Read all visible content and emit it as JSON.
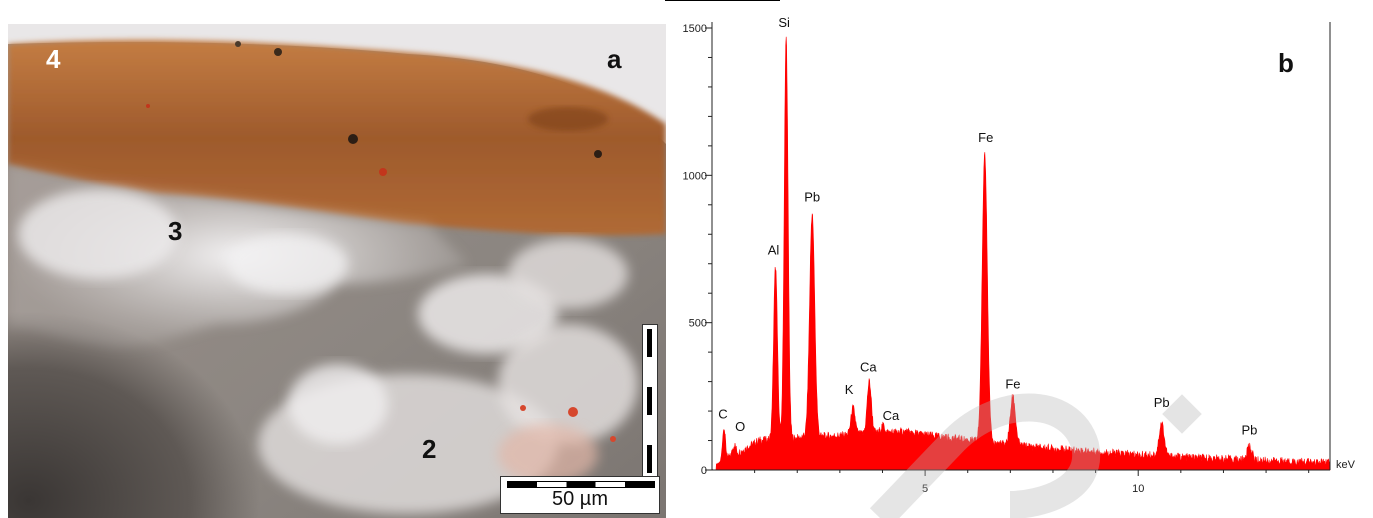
{
  "panel_a": {
    "label": "a",
    "regions": [
      "4",
      "3",
      "2"
    ],
    "scale_bar_text": "50 µm"
  },
  "chart_data": {
    "type": "line",
    "panel_label": "b",
    "xlabel": "keV",
    "ylabel": "",
    "title": "",
    "xlim": [
      0,
      14.5
    ],
    "ylim": [
      0,
      1500
    ],
    "x_ticks": [
      5,
      10
    ],
    "y_ticks": [
      0,
      500,
      1000,
      1500
    ],
    "grid": false,
    "series_color": "#ff0000",
    "peaks": [
      {
        "label": "C",
        "x": 0.28,
        "y": 140
      },
      {
        "label": "O",
        "x": 0.52,
        "y": 85
      },
      {
        "label": "Al",
        "x": 1.49,
        "y": 690
      },
      {
        "label": "Si",
        "x": 1.74,
        "y": 1470
      },
      {
        "label": "Pb",
        "x": 2.35,
        "y": 870
      },
      {
        "label": "K",
        "x": 3.31,
        "y": 210
      },
      {
        "label": "Ca",
        "x": 3.69,
        "y": 300
      },
      {
        "label": "Ca",
        "x": 4.01,
        "y": 150
      },
      {
        "label": "Fe",
        "x": 6.4,
        "y": 1080
      },
      {
        "label": "Fe",
        "x": 7.06,
        "y": 250
      },
      {
        "label": "Pb",
        "x": 10.55,
        "y": 160
      },
      {
        "label": "Pb",
        "x": 12.61,
        "y": 80
      }
    ]
  }
}
